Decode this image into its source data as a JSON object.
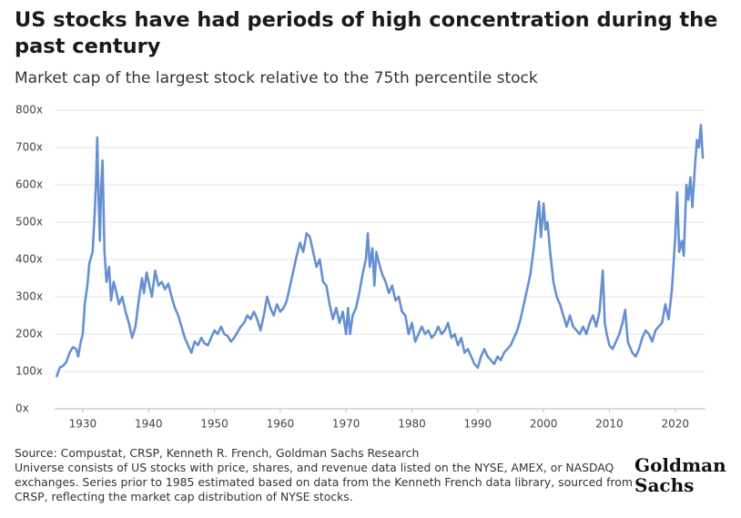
{
  "chart_data": {
    "type": "line",
    "title": "US stocks have had periods of high concentration during the past century",
    "subtitle": "Market cap of the largest stock relative to the 75th percentile stock",
    "source": "Source: Compustat, CRSP, Kenneth R. French, Goldman Sachs Research",
    "notes": "Universe consists of US stocks with price, shares, and revenue data listed on the NYSE, AMEX, or NASDAQ exchanges. Series prior to 1985 estimated based on data from the Kenneth French data library, sourced from CRSP, reflecting the market cap distribution of NYSE stocks.",
    "logo": [
      "Goldman",
      "Sachs"
    ],
    "xlim": [
      1926,
      2024.6
    ],
    "xticks": [
      1930,
      1940,
      1950,
      1960,
      1970,
      1980,
      1990,
      2000,
      2010,
      2020
    ],
    "ylim": [
      0,
      800
    ],
    "yticks": [
      {
        "value": 0,
        "label": "0x"
      },
      {
        "value": 100,
        "label": "100x"
      },
      {
        "value": 200,
        "label": "200x"
      },
      {
        "value": 300,
        "label": "300x"
      },
      {
        "value": 400,
        "label": "400x"
      },
      {
        "value": 500,
        "label": "500x"
      },
      {
        "value": 600,
        "label": "600x"
      },
      {
        "value": 700,
        "label": "700x"
      },
      {
        "value": 800,
        "label": "800x"
      }
    ],
    "grid": true,
    "color": "#6690d2",
    "x": [
      1926,
      1926.5,
      1927,
      1927.5,
      1928,
      1928.5,
      1929,
      1929.3,
      1929.7,
      1930,
      1930.3,
      1930.7,
      1931,
      1931.5,
      1931.8,
      1932,
      1932.2,
      1932.4,
      1932.6,
      1932.8,
      1933,
      1933.3,
      1933.6,
      1934,
      1934.3,
      1934.7,
      1935,
      1935.5,
      1936,
      1936.5,
      1937,
      1937.5,
      1938,
      1938.5,
      1939,
      1939.3,
      1939.7,
      1940,
      1940.5,
      1941,
      1941.5,
      1942,
      1942.5,
      1943,
      1943.5,
      1944,
      1944.5,
      1945,
      1945.5,
      1946,
      1946.5,
      1947,
      1947.5,
      1948,
      1948.5,
      1949,
      1949.5,
      1950,
      1950.5,
      1951,
      1951.5,
      1952,
      1952.5,
      1953,
      1953.5,
      1954,
      1954.5,
      1955,
      1955.5,
      1956,
      1956.5,
      1957,
      1957.5,
      1958,
      1958.5,
      1959,
      1959.5,
      1960,
      1960.5,
      1961,
      1961.5,
      1962,
      1962.5,
      1963,
      1963.5,
      1964,
      1964.5,
      1965,
      1965.5,
      1966,
      1966.5,
      1967,
      1967.5,
      1968,
      1968.5,
      1969,
      1969.5,
      1970,
      1970.3,
      1970.6,
      1971,
      1971.5,
      1972,
      1972.5,
      1973,
      1973.3,
      1973.6,
      1974,
      1974.3,
      1974.6,
      1975,
      1975.5,
      1976,
      1976.5,
      1977,
      1977.5,
      1978,
      1978.5,
      1979,
      1979.5,
      1980,
      1980.5,
      1981,
      1981.5,
      1982,
      1982.5,
      1983,
      1983.5,
      1984,
      1984.5,
      1985,
      1985.5,
      1986,
      1986.5,
      1987,
      1987.5,
      1988,
      1988.5,
      1989,
      1989.5,
      1990,
      1990.5,
      1991,
      1991.5,
      1992,
      1992.5,
      1993,
      1993.5,
      1994,
      1994.5,
      1995,
      1995.5,
      1996,
      1996.5,
      1997,
      1997.5,
      1998,
      1998.5,
      1999,
      1999.3,
      1999.6,
      2000,
      2000.3,
      2000.6,
      2001,
      2001.5,
      2002,
      2002.5,
      2003,
      2003.5,
      2004,
      2004.5,
      2005,
      2005.5,
      2006,
      2006.5,
      2007,
      2007.5,
      2008,
      2008.5,
      2009,
      2009.3,
      2009.6,
      2010,
      2010.5,
      2011,
      2011.5,
      2012,
      2012.4,
      2012.8,
      2013,
      2013.5,
      2014,
      2014.5,
      2015,
      2015.5,
      2016,
      2016.5,
      2017,
      2017.5,
      2018,
      2018.5,
      2019,
      2019.5,
      2020,
      2020.3,
      2020.6,
      2021,
      2021.3,
      2021.7,
      2022,
      2022.3,
      2022.6,
      2023,
      2023.3,
      2023.6,
      2023.9,
      2024.2
    ],
    "values": [
      85,
      110,
      115,
      125,
      150,
      165,
      160,
      140,
      180,
      200,
      280,
      330,
      390,
      420,
      520,
      600,
      727,
      560,
      450,
      600,
      665,
      420,
      340,
      380,
      290,
      340,
      320,
      280,
      300,
      260,
      230,
      190,
      220,
      290,
      350,
      310,
      365,
      340,
      300,
      370,
      330,
      340,
      320,
      335,
      300,
      270,
      250,
      220,
      190,
      170,
      150,
      180,
      170,
      190,
      175,
      170,
      190,
      210,
      200,
      220,
      200,
      195,
      180,
      190,
      205,
      220,
      230,
      250,
      240,
      260,
      240,
      210,
      250,
      300,
      270,
      250,
      280,
      260,
      270,
      290,
      330,
      370,
      410,
      445,
      420,
      470,
      460,
      420,
      380,
      400,
      340,
      330,
      280,
      240,
      270,
      230,
      260,
      200,
      270,
      200,
      250,
      270,
      310,
      360,
      400,
      470,
      380,
      430,
      330,
      420,
      390,
      360,
      340,
      310,
      330,
      290,
      300,
      260,
      250,
      200,
      230,
      180,
      200,
      220,
      200,
      210,
      190,
      200,
      220,
      200,
      210,
      230,
      190,
      200,
      170,
      190,
      150,
      160,
      140,
      120,
      110,
      140,
      160,
      140,
      130,
      120,
      140,
      130,
      150,
      160,
      170,
      190,
      210,
      240,
      280,
      320,
      360,
      430,
      510,
      555,
      460,
      550,
      480,
      500,
      420,
      340,
      300,
      280,
      250,
      220,
      250,
      220,
      210,
      200,
      220,
      200,
      230,
      250,
      220,
      260,
      370,
      230,
      200,
      170,
      160,
      180,
      200,
      230,
      265,
      180,
      170,
      150,
      140,
      160,
      190,
      210,
      200,
      180,
      210,
      220,
      230,
      280,
      240,
      320,
      460,
      580,
      420,
      450,
      410,
      600,
      560,
      620,
      540,
      650,
      720,
      700,
      760,
      670
    ]
  }
}
